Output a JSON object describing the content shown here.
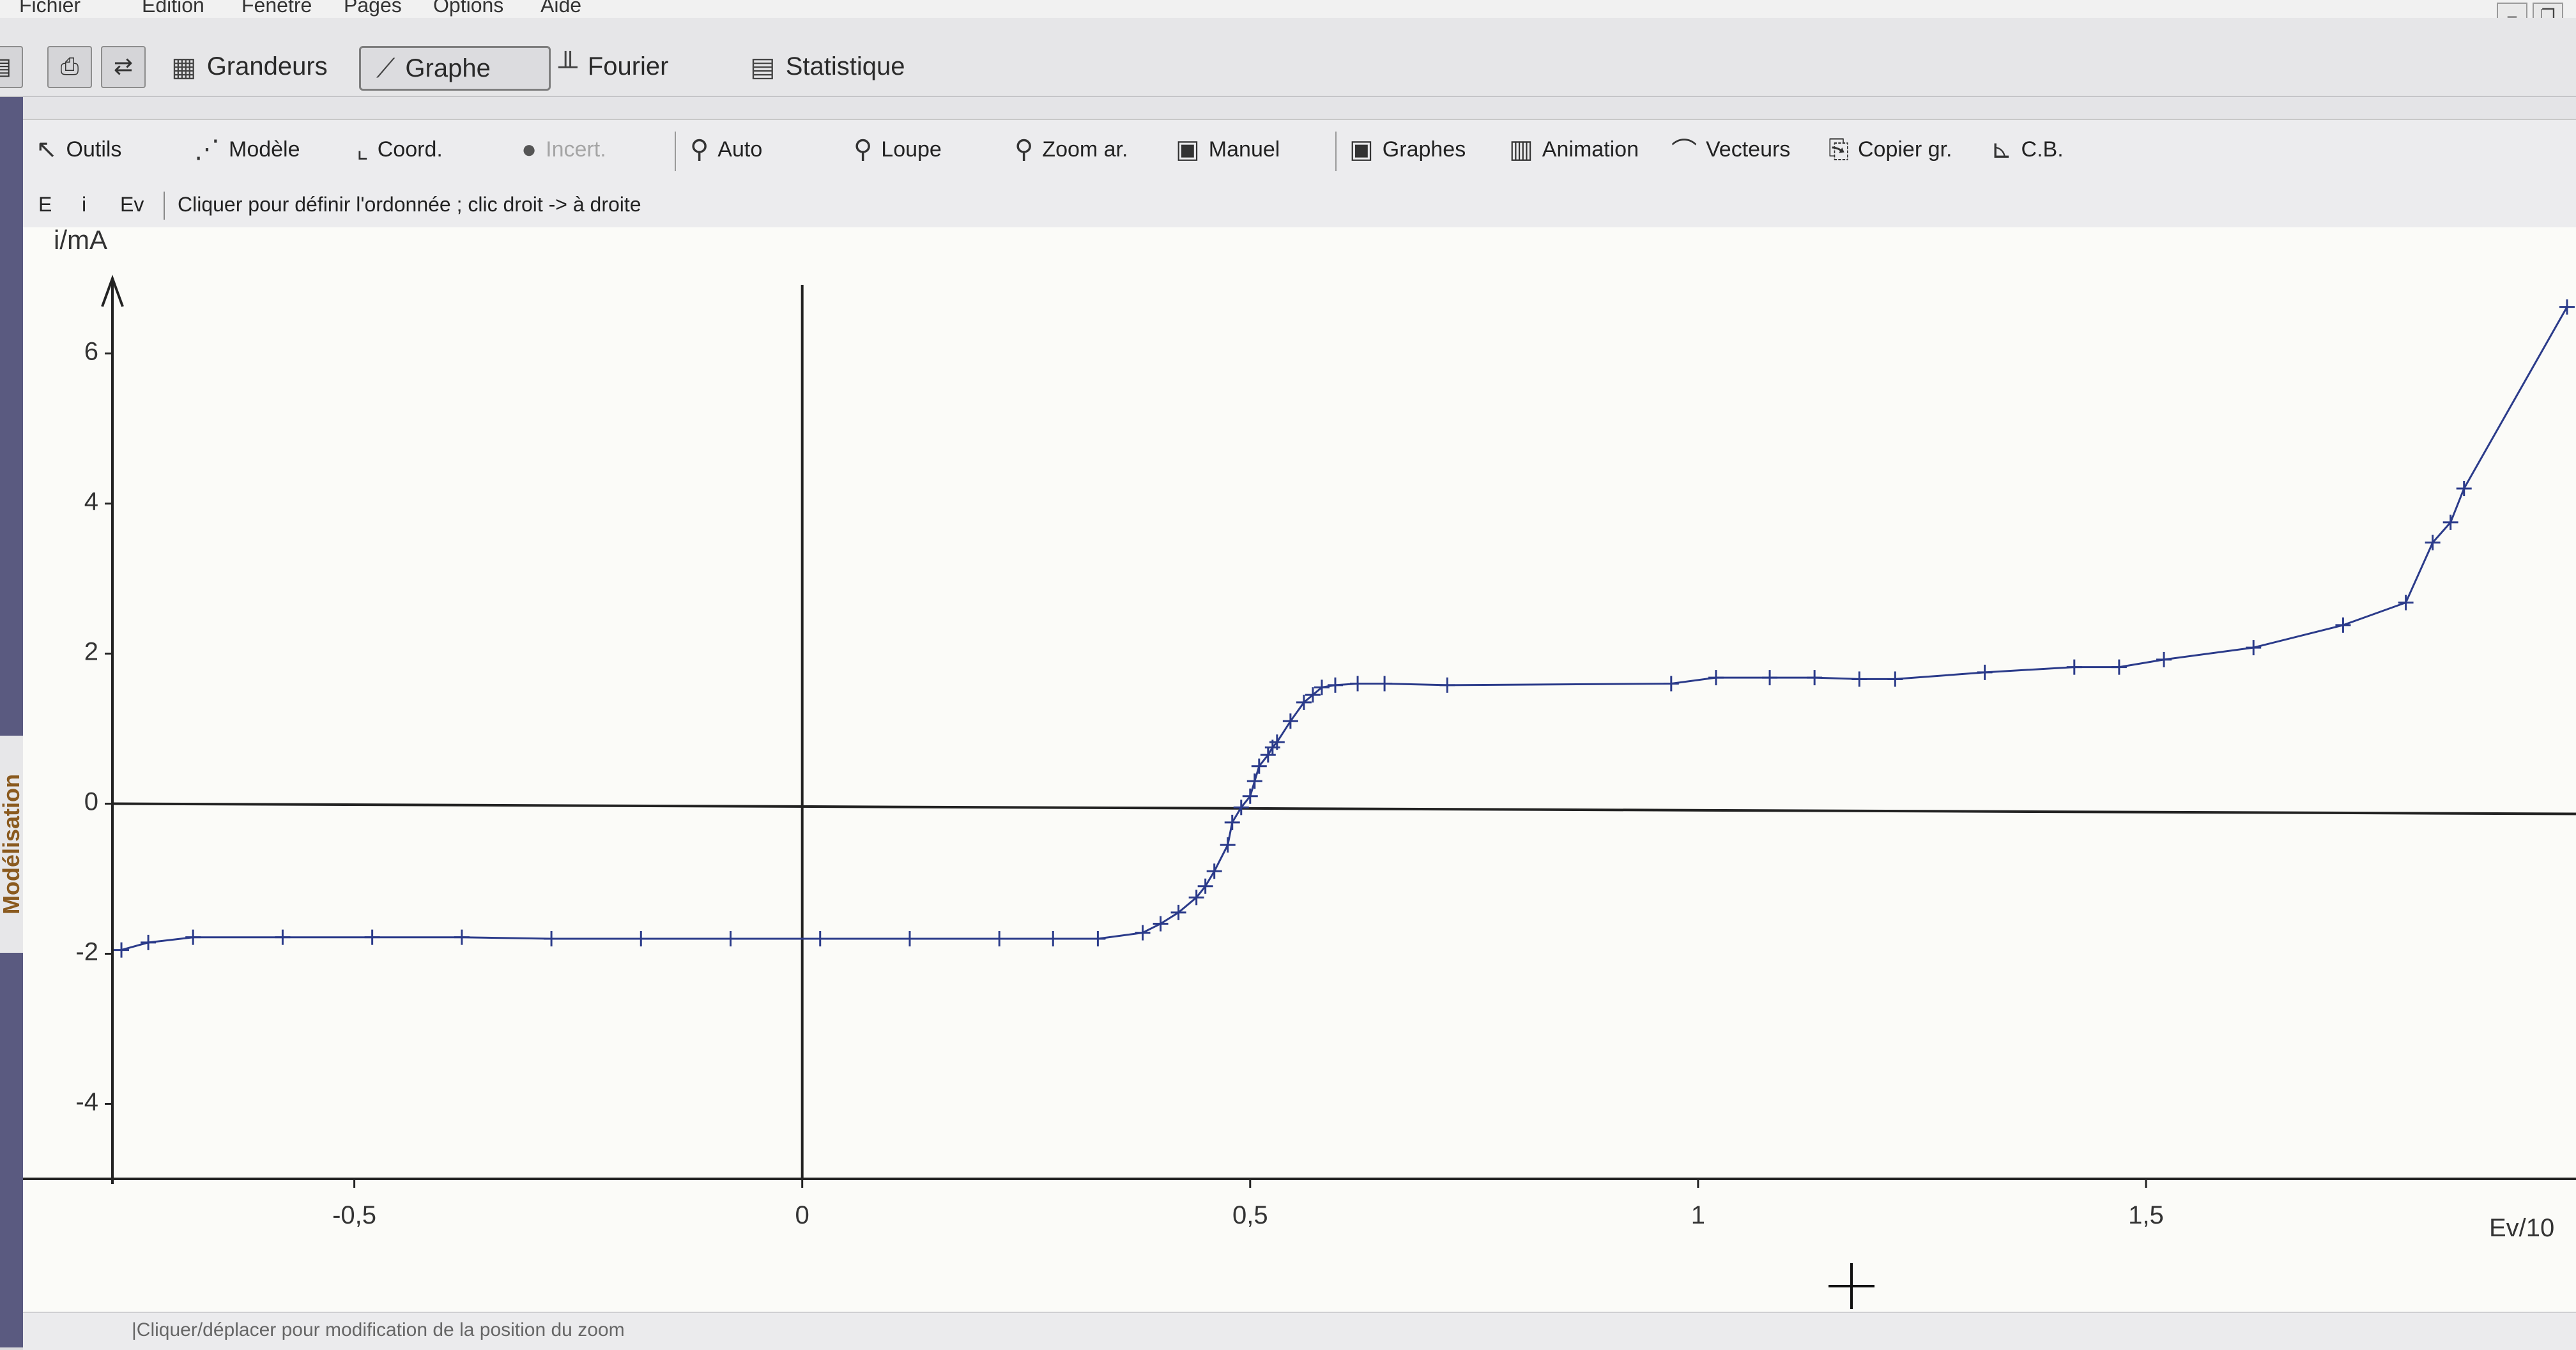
{
  "menu": {
    "items": [
      {
        "label": "Fichier"
      },
      {
        "label": "Edition"
      },
      {
        "label": "Fenêtre"
      },
      {
        "label": "Pages"
      },
      {
        "label": "Options"
      },
      {
        "label": "Aide"
      }
    ]
  },
  "tabs": [
    {
      "label": "Grandeurs",
      "icon": "table-icon",
      "active": false
    },
    {
      "label": "Graphe",
      "icon": "graph-icon",
      "active": true
    },
    {
      "label": "Fourier",
      "icon": "spectrum-icon",
      "active": false
    },
    {
      "label": "Statistique",
      "icon": "statistics-icon",
      "active": false
    }
  ],
  "toolbar": {
    "outils": "Outils",
    "modele": "Modèle",
    "coord": "Coord.",
    "incert": "Incert.",
    "auto": "Auto",
    "loupe": "Loupe",
    "zoom_ar": "Zoom ar.",
    "manuel": "Manuel",
    "graphes": "Graphes",
    "animation": "Animation",
    "vecteurs": "Vecteurs",
    "copier": "Copier gr.",
    "cb": "C.B."
  },
  "subbar": {
    "e": "E",
    "i": "i",
    "ev": "Ev",
    "hint": "Cliquer pour définir l'ordonnée ; clic droit -> à droite"
  },
  "side_label": "Modélisation",
  "status_text": "|Cliquer/déplacer pour modification de la position du zoom",
  "chart_data": {
    "type": "line",
    "ylabel": "i/mA",
    "xlabel": "Ev/10",
    "xlim": [
      -0.77,
      1.98
    ],
    "ylim": [
      -5,
      7
    ],
    "x_ticks": [
      {
        "value": -0.5,
        "label": "-0,5"
      },
      {
        "value": 0,
        "label": "0"
      },
      {
        "value": 0.5,
        "label": "0,5"
      },
      {
        "value": 1,
        "label": "1"
      },
      {
        "value": 1.5,
        "label": "1,5"
      }
    ],
    "y_ticks": [
      {
        "value": 6,
        "label": "6"
      },
      {
        "value": 4,
        "label": "4"
      },
      {
        "value": 2,
        "label": "2"
      },
      {
        "value": 0,
        "label": "0"
      },
      {
        "value": -2,
        "label": "-2"
      },
      {
        "value": -4,
        "label": "-4"
      }
    ],
    "series": [
      {
        "color": "#2b3b8a",
        "x": [
          -0.76,
          -0.73,
          -0.68,
          -0.58,
          -0.48,
          -0.38,
          -0.28,
          -0.18,
          -0.08,
          0.02,
          0.12,
          0.22,
          0.28,
          0.33,
          0.38,
          0.4,
          0.42,
          0.44,
          0.45,
          0.46,
          0.475,
          0.48,
          0.49,
          0.5,
          0.505,
          0.51,
          0.52,
          0.525,
          0.53,
          0.545,
          0.56,
          0.57,
          0.58,
          0.595,
          0.62,
          0.65,
          0.72,
          0.97,
          1.02,
          1.08,
          1.13,
          1.18,
          1.22,
          1.32,
          1.42,
          1.47,
          1.52,
          1.62,
          1.72,
          1.79,
          1.82,
          1.84,
          1.855,
          1.97
        ],
        "y": [
          -1.95,
          -1.85,
          -1.78,
          -1.78,
          -1.78,
          -1.78,
          -1.8,
          -1.8,
          -1.8,
          -1.8,
          -1.8,
          -1.8,
          -1.8,
          -1.8,
          -1.72,
          -1.6,
          -1.45,
          -1.25,
          -1.1,
          -0.9,
          -0.55,
          -0.25,
          -0.05,
          0.1,
          0.3,
          0.5,
          0.65,
          0.75,
          0.82,
          1.1,
          1.35,
          1.45,
          1.55,
          1.58,
          1.6,
          1.6,
          1.58,
          1.6,
          1.68,
          1.68,
          1.68,
          1.66,
          1.66,
          1.75,
          1.82,
          1.82,
          1.92,
          2.08,
          2.38,
          2.68,
          3.48,
          3.75,
          4.2,
          6.62
        ]
      }
    ],
    "grid": false
  }
}
